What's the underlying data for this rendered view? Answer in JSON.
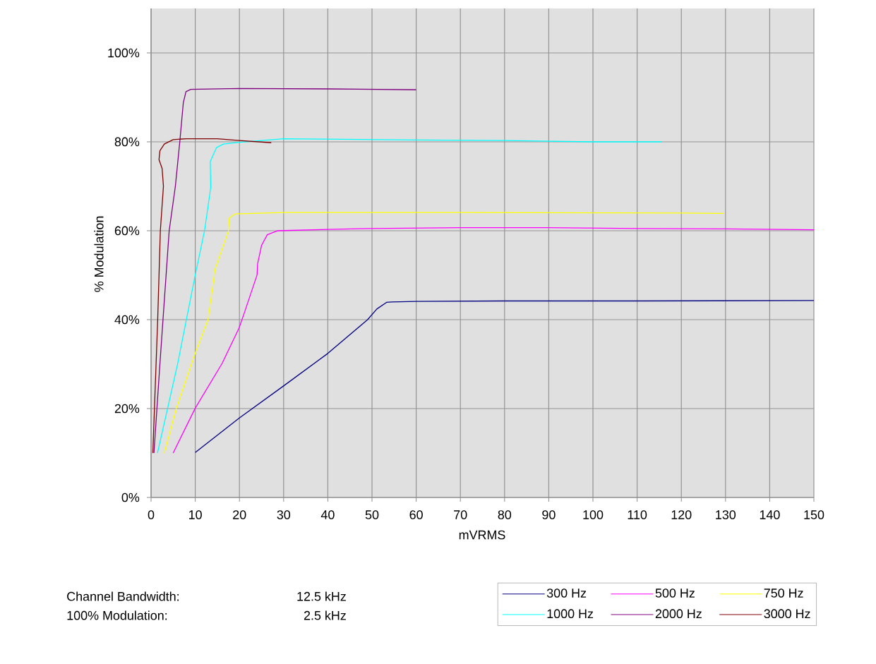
{
  "chart_data": {
    "type": "line",
    "xlabel": "mVRMS",
    "ylabel": "% Modulation",
    "xlim": [
      0,
      150
    ],
    "ylim": [
      0,
      110
    ],
    "xticks": [
      0,
      10,
      20,
      30,
      40,
      50,
      60,
      70,
      80,
      90,
      100,
      110,
      120,
      130,
      140,
      150
    ],
    "yticks": [
      {
        "value": 0,
        "label": "0%"
      },
      {
        "value": 20,
        "label": "20%"
      },
      {
        "value": 40,
        "label": "40%"
      },
      {
        "value": 60,
        "label": "60%"
      },
      {
        "value": 80,
        "label": "80%"
      },
      {
        "value": 100,
        "label": "100%"
      }
    ],
    "grid": true,
    "legend": "bottom",
    "marker": "none",
    "line_style": "solid",
    "annotations": [
      "Channel Bandwidth:",
      "12.5 kHz",
      "100% Modulation:",
      "2.5 kHz"
    ],
    "series": [
      {
        "name": "300 Hz",
        "color": "#000080",
        "x": [
          10,
          20,
          30,
          40,
          49,
          51.1,
          53.3,
          54.6,
          60,
          80,
          110,
          150
        ],
        "values": [
          10.1,
          17.9,
          25.1,
          32.4,
          40,
          42.4,
          43.9,
          44.0,
          44.1,
          44.2,
          44.2,
          44.3
        ]
      },
      {
        "name": "500 Hz",
        "color": "#ff00ff",
        "x": [
          5,
          10,
          16.1,
          19.9,
          21.2,
          24.0,
          24.1,
          25,
          26.3,
          28.7,
          40,
          50,
          70,
          90,
          110,
          130,
          150
        ],
        "values": [
          10,
          20.1,
          30.2,
          38.1,
          41.8,
          50.1,
          52.5,
          56.7,
          59.1,
          60.0,
          60.3,
          60.5,
          60.7,
          60.7,
          60.5,
          60.4,
          60.2
        ]
      },
      {
        "name": "750 Hz",
        "color": "#ffff00",
        "x": [
          3,
          5.7,
          10,
          12.9,
          14.5,
          17.5,
          17.7,
          19.1,
          30,
          70,
          120,
          129.6
        ],
        "values": [
          10,
          20,
          32.5,
          40,
          51.4,
          59.9,
          62.9,
          63.8,
          64.1,
          64.1,
          64.0,
          63.9
        ]
      },
      {
        "name": "1000 Hz",
        "color": "#00ffff",
        "x": [
          1.45,
          3.5,
          6,
          9.9,
          12.1,
          13.5,
          13.4,
          14.8,
          16.4,
          20.1,
          30,
          60,
          80,
          100,
          115.6
        ],
        "values": [
          10,
          19,
          30,
          49.6,
          60,
          69.7,
          75.6,
          78.7,
          79.5,
          79.9,
          80.7,
          80.4,
          80.3,
          80.0,
          80.0
        ]
      },
      {
        "name": "2000 Hz",
        "color": "#800080",
        "x": [
          0.65,
          2,
          4.1,
          5.5,
          6.5,
          7.3,
          7.9,
          9,
          20,
          40,
          60
        ],
        "values": [
          10,
          30,
          60,
          70,
          80,
          88.8,
          91.3,
          91.8,
          92.0,
          91.9,
          91.7
        ]
      },
      {
        "name": "3000 Hz",
        "color": "#800000",
        "x": [
          0.4,
          1.5,
          2.1,
          2.8,
          2.5,
          1.8,
          2.0,
          3.0,
          5,
          8,
          15,
          20,
          27.2
        ],
        "values": [
          10,
          40,
          60,
          70,
          74,
          76,
          78,
          79.5,
          80.5,
          80.7,
          80.7,
          80.3,
          79.8
        ]
      }
    ]
  }
}
